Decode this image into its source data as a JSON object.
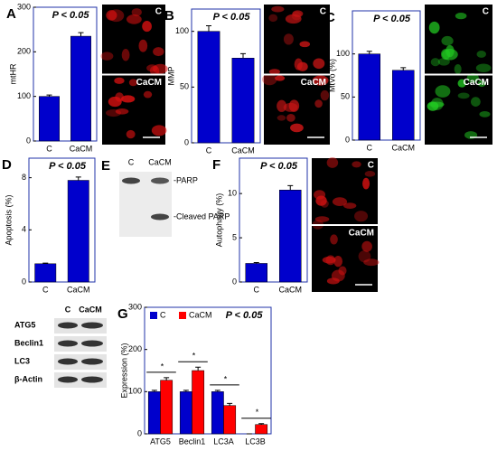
{
  "chart_data": [
    {
      "type": "bar",
      "panel": "A",
      "annotation": "P < 0.05",
      "ylabel": "mtHR",
      "categories": [
        "C",
        "CaCM"
      ],
      "values": [
        100,
        235
      ],
      "errors": [
        3,
        8
      ],
      "color": "#0000cc",
      "ylim": [
        0,
        300
      ],
      "yticks": [
        0,
        100,
        200,
        300
      ]
    },
    {
      "type": "bar",
      "panel": "B",
      "annotation": "P < 0.05",
      "ylabel": "MMP",
      "categories": [
        "C",
        "CaCM"
      ],
      "values": [
        100,
        76
      ],
      "errors": [
        5,
        4
      ],
      "color": "#0000cc",
      "ylim": [
        0,
        120
      ],
      "yticks": [
        0,
        50,
        100
      ]
    },
    {
      "type": "bar",
      "panel": "C",
      "annotation": "P < 0.05",
      "ylabel": "MtVo (%)",
      "categories": [
        "C",
        "CaCM"
      ],
      "values": [
        100,
        81
      ],
      "errors": [
        3,
        3
      ],
      "color": "#0000cc",
      "ylim": [
        0,
        150
      ],
      "yticks": [
        0,
        50,
        100
      ]
    },
    {
      "type": "bar",
      "panel": "D",
      "annotation": "P < 0.05",
      "ylabel": "Apoptosis (%)",
      "categories": [
        "C",
        "CaCM"
      ],
      "values": [
        1.4,
        7.8
      ],
      "errors": [
        0.05,
        0.25
      ],
      "color": "#0000cc",
      "ylim": [
        0,
        9.5
      ],
      "yticks": [
        0,
        4,
        8
      ]
    },
    {
      "type": "bar",
      "panel": "F",
      "annotation": "P < 0.05",
      "ylabel": "Autophagy (%)",
      "categories": [
        "C",
        "CaCM"
      ],
      "values": [
        2.1,
        10.4
      ],
      "errors": [
        0.1,
        0.5
      ],
      "color": "#0000cc",
      "ylim": [
        0,
        14
      ],
      "yticks": [
        0,
        5,
        10
      ]
    },
    {
      "type": "bar",
      "panel": "G",
      "annotation": "P < 0.05",
      "ylabel": "Expression (%)",
      "categories": [
        "ATG5",
        "Beclin1",
        "LC3A",
        "LC3B"
      ],
      "markers": [
        "*",
        "*",
        "*",
        "*"
      ],
      "legend": "top-left",
      "series": [
        {
          "name": "C",
          "color": "#0000cc",
          "values": [
            100,
            100,
            100,
            0
          ],
          "errors": [
            3,
            3,
            3,
            0
          ]
        },
        {
          "name": "CaCM",
          "color": "#ff0000",
          "values": [
            127,
            150,
            67,
            22
          ],
          "errors": [
            6,
            8,
            5,
            2
          ]
        }
      ],
      "ylim": [
        0,
        300
      ],
      "yticks": [
        0,
        100,
        200,
        300
      ]
    }
  ],
  "micrographs": [
    {
      "top": "C",
      "bottom": "CaCM",
      "color": "#dd1111"
    },
    {
      "top": "C",
      "bottom": "CaCM",
      "color": "#cc1515"
    },
    {
      "top": "C",
      "bottom": "CaCM",
      "color": "#22cc22"
    },
    {
      "top": "C",
      "bottom": "CaCM",
      "color": "#cc1111"
    }
  ],
  "blots": [
    {
      "panel": "E",
      "lanes": [
        "C",
        "CaCM"
      ],
      "bands": [
        "-PARP",
        "-Cleaved PARP"
      ]
    },
    {
      "lanes": [
        "C",
        "CaCM"
      ],
      "bands": [
        "ATG5",
        "Beclin1",
        "LC3",
        "β-Actin"
      ]
    }
  ]
}
